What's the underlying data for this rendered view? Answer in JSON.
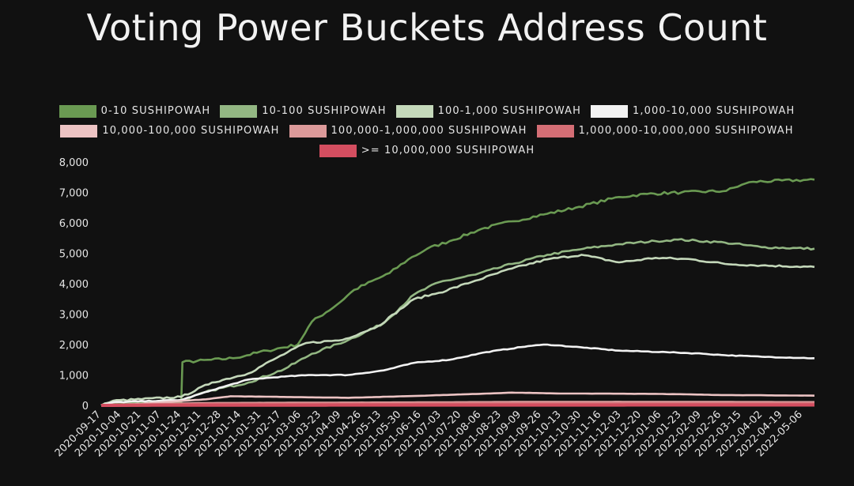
{
  "chart_data": {
    "type": "line",
    "title": "Voting Power Buckets Address Count",
    "xlabel": "",
    "ylabel": "",
    "ylim": [
      0,
      8000
    ],
    "yticks": [
      0,
      1000,
      2000,
      3000,
      4000,
      5000,
      6000,
      7000,
      8000
    ],
    "ytick_labels": [
      "0",
      "1,000",
      "2,000",
      "3,000",
      "4,000",
      "5,000",
      "6,000",
      "7,000",
      "8,000"
    ],
    "x_tick_labels": [
      "2020-09-17",
      "2020-10-04",
      "2020-10-21",
      "2020-11-07",
      "2020-11-24",
      "2020-12-11",
      "2020-12-28",
      "2021-01-14",
      "2021-01-31",
      "2021-02-17",
      "2021-03-06",
      "2021-03-23",
      "2021-04-09",
      "2021-04-26",
      "2021-05-13",
      "2021-05-30",
      "2021-06-16",
      "2021-07-03",
      "2021-07-20",
      "2021-08-06",
      "2021-08-23",
      "2021-09-09",
      "2021-09-26",
      "2021-10-13",
      "2021-10-30",
      "2021-11-16",
      "2021-12-03",
      "2021-12-20",
      "2022-01-06",
      "2022-01-23",
      "2022-02-09",
      "2022-02-26",
      "2022-03-15",
      "2022-04-02",
      "2022-04-19",
      "2022-05-06"
    ],
    "x_end": "2022-05-16",
    "grid": false,
    "legend_position": "top",
    "series": [
      {
        "name": "0-10 SUSHIPOWAH",
        "color": "#6a9a52",
        "points": [
          [
            "2020-09-17",
            0
          ],
          [
            "2020-09-27",
            80
          ],
          [
            "2020-11-24",
            90
          ],
          [
            "2020-11-25",
            1420
          ],
          [
            "2021-01-07",
            1550
          ],
          [
            "2021-02-05",
            1800
          ],
          [
            "2021-03-03",
            2000
          ],
          [
            "2021-03-15",
            2750
          ],
          [
            "2021-04-05",
            3300
          ],
          [
            "2021-04-20",
            3800
          ],
          [
            "2021-05-20",
            4350
          ],
          [
            "2021-06-05",
            4800
          ],
          [
            "2021-06-21",
            5150
          ],
          [
            "2021-07-10",
            5400
          ],
          [
            "2021-08-06",
            5800
          ],
          [
            "2021-09-01",
            6050
          ],
          [
            "2021-10-01",
            6300
          ],
          [
            "2021-10-25",
            6500
          ],
          [
            "2021-12-01",
            6850
          ],
          [
            "2021-12-25",
            6950
          ],
          [
            "2022-01-23",
            7000
          ],
          [
            "2022-03-02",
            7050
          ],
          [
            "2022-03-15",
            7250
          ],
          [
            "2022-03-25",
            7350
          ],
          [
            "2022-05-16",
            7420
          ]
        ]
      },
      {
        "name": "10-100 SUSHIPOWAH",
        "color": "#93b783",
        "points": [
          [
            "2020-09-17",
            0
          ],
          [
            "2020-09-27",
            120
          ],
          [
            "2020-11-24",
            150
          ],
          [
            "2020-12-20",
            500
          ],
          [
            "2021-01-20",
            750
          ],
          [
            "2021-02-20",
            1200
          ],
          [
            "2021-03-15",
            1700
          ],
          [
            "2021-04-15",
            2150
          ],
          [
            "2021-05-15",
            2700
          ],
          [
            "2021-06-10",
            3650
          ],
          [
            "2021-07-01",
            4050
          ],
          [
            "2021-08-01",
            4300
          ],
          [
            "2021-09-01",
            4650
          ],
          [
            "2021-10-01",
            4950
          ],
          [
            "2021-11-01",
            5150
          ],
          [
            "2021-12-01",
            5300
          ],
          [
            "2022-01-01",
            5400
          ],
          [
            "2022-01-20",
            5450
          ],
          [
            "2022-03-01",
            5350
          ],
          [
            "2022-04-01",
            5200
          ],
          [
            "2022-05-16",
            5150
          ]
        ]
      },
      {
        "name": "100-1,000 SUSHIPOWAH",
        "color": "#c4d8ba",
        "points": [
          [
            "2020-09-17",
            0
          ],
          [
            "2020-09-27",
            150
          ],
          [
            "2020-11-24",
            280
          ],
          [
            "2020-12-20",
            750
          ],
          [
            "2021-01-20",
            1050
          ],
          [
            "2021-02-10",
            1500
          ],
          [
            "2021-03-10",
            2050
          ],
          [
            "2021-04-10",
            2150
          ],
          [
            "2021-05-10",
            2600
          ],
          [
            "2021-06-10",
            3500
          ],
          [
            "2021-07-01",
            3700
          ],
          [
            "2021-08-01",
            4100
          ],
          [
            "2021-09-01",
            4500
          ],
          [
            "2021-10-01",
            4800
          ],
          [
            "2021-10-30",
            4950
          ],
          [
            "2021-12-01",
            4700
          ],
          [
            "2022-01-01",
            4850
          ],
          [
            "2022-02-01",
            4800
          ],
          [
            "2022-03-01",
            4650
          ],
          [
            "2022-04-01",
            4600
          ],
          [
            "2022-05-16",
            4550
          ]
        ]
      },
      {
        "name": "1,000-10,000 SUSHIPOWAH",
        "color": "#f2f2f2",
        "points": [
          [
            "2020-09-17",
            0
          ],
          [
            "2020-09-27",
            100
          ],
          [
            "2020-11-24",
            180
          ],
          [
            "2020-12-20",
            500
          ],
          [
            "2021-01-20",
            850
          ],
          [
            "2021-02-20",
            950
          ],
          [
            "2021-03-15",
            1000
          ],
          [
            "2021-04-15",
            1000
          ],
          [
            "2021-05-15",
            1150
          ],
          [
            "2021-06-10",
            1400
          ],
          [
            "2021-07-10",
            1500
          ],
          [
            "2021-08-10",
            1750
          ],
          [
            "2021-09-15",
            1950
          ],
          [
            "2021-10-01",
            2000
          ],
          [
            "2021-11-01",
            1900
          ],
          [
            "2021-12-01",
            1800
          ],
          [
            "2022-01-10",
            1750
          ],
          [
            "2022-02-10",
            1700
          ],
          [
            "2022-03-01",
            1650
          ],
          [
            "2022-04-01",
            1600
          ],
          [
            "2022-05-16",
            1550
          ]
        ]
      },
      {
        "name": "10,000-100,000 SUSHIPOWAH",
        "color": "#ecc3c3",
        "points": [
          [
            "2020-09-17",
            0
          ],
          [
            "2020-10-15",
            40
          ],
          [
            "2020-12-15",
            200
          ],
          [
            "2021-01-05",
            300
          ],
          [
            "2021-03-06",
            270
          ],
          [
            "2021-04-15",
            250
          ],
          [
            "2021-06-01",
            300
          ],
          [
            "2021-07-20",
            360
          ],
          [
            "2021-09-01",
            420
          ],
          [
            "2021-10-15",
            390
          ],
          [
            "2022-01-01",
            380
          ],
          [
            "2022-03-01",
            340
          ],
          [
            "2022-05-16",
            320
          ]
        ]
      },
      {
        "name": "100,000-1,000,000 SUSHIPOWAH",
        "color": "#dc9a9a",
        "points": [
          [
            "2020-09-17",
            0
          ],
          [
            "2020-10-15",
            20
          ],
          [
            "2020-12-15",
            60
          ],
          [
            "2021-03-01",
            70
          ],
          [
            "2021-06-01",
            80
          ],
          [
            "2021-09-01",
            95
          ],
          [
            "2021-12-01",
            100
          ],
          [
            "2022-03-01",
            95
          ],
          [
            "2022-05-16",
            90
          ]
        ]
      },
      {
        "name": "1,000,000-10,000,000 SUSHIPOWAH",
        "color": "#d46e75",
        "points": [
          [
            "2020-09-17",
            0
          ],
          [
            "2020-10-15",
            10
          ],
          [
            "2020-12-15",
            30
          ],
          [
            "2021-03-01",
            35
          ],
          [
            "2021-06-01",
            40
          ],
          [
            "2021-09-01",
            45
          ],
          [
            "2021-12-01",
            45
          ],
          [
            "2022-03-01",
            45
          ],
          [
            "2022-05-16",
            45
          ]
        ]
      },
      {
        "name": ">= 10,000,000 SUSHIPOWAH",
        "color": "#d44e60",
        "points": [
          [
            "2020-09-17",
            0
          ],
          [
            "2020-10-15",
            3
          ],
          [
            "2021-01-01",
            8
          ],
          [
            "2021-06-01",
            10
          ],
          [
            "2022-01-01",
            12
          ],
          [
            "2022-05-16",
            12
          ]
        ]
      }
    ]
  }
}
